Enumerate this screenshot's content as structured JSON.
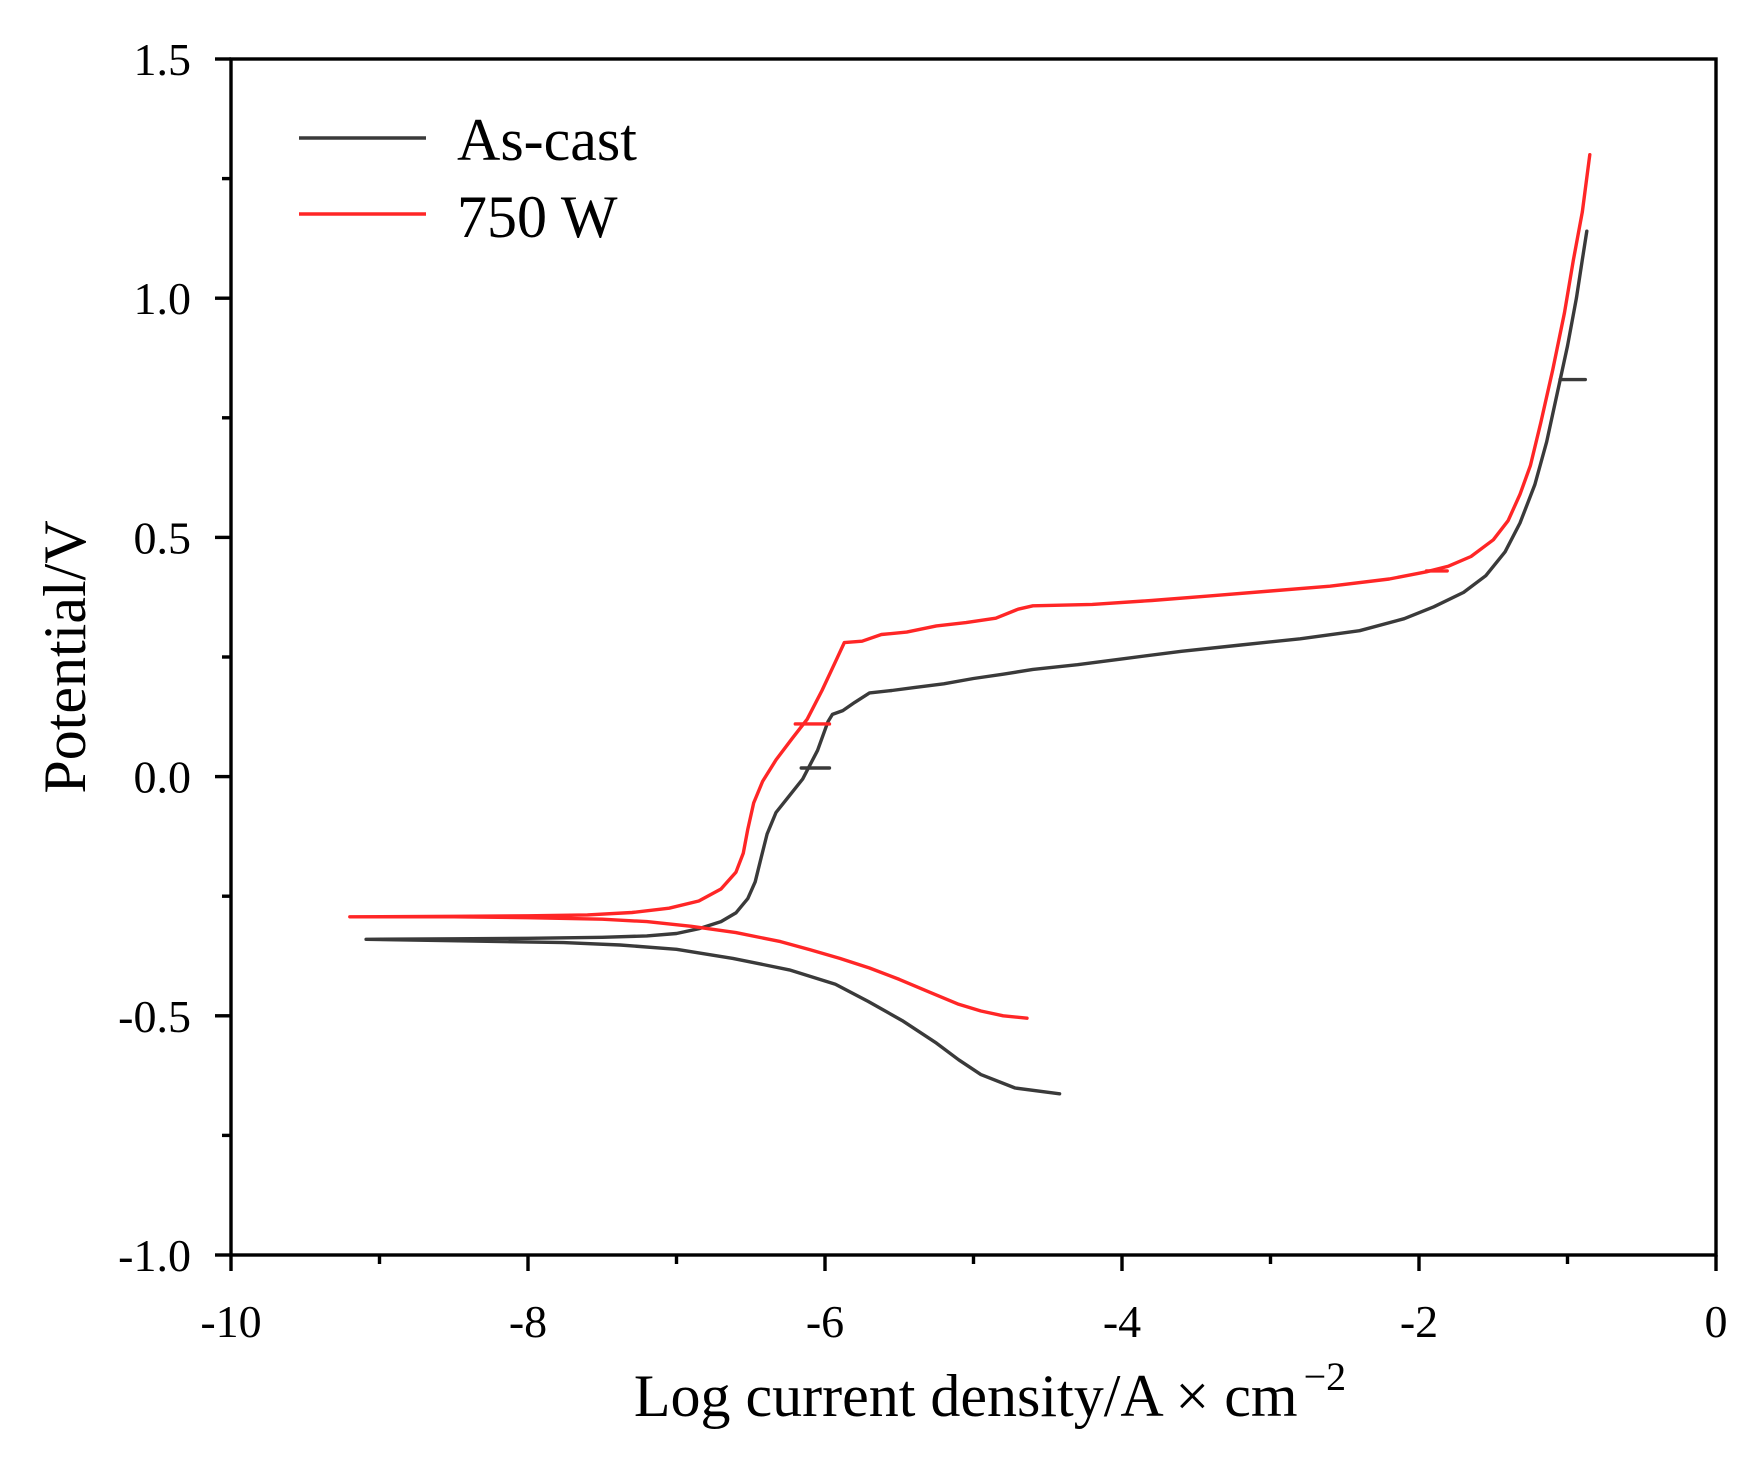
{
  "chart_data": {
    "type": "line",
    "title": "",
    "xlabel": "Log current density/A × cm",
    "xlabel_sup": "−2",
    "ylabel": "Potential/V",
    "xlim": [
      -10,
      0
    ],
    "ylim": [
      -1.0,
      1.5
    ],
    "xticks": [
      -10,
      -8,
      -6,
      -4,
      -2,
      0
    ],
    "xtick_labels": [
      "-10",
      "-8",
      "-6",
      "-4",
      "-2",
      "0"
    ],
    "xminor": [
      -9,
      -7,
      -5,
      -3,
      -1
    ],
    "yticks": [
      1.5,
      1.0,
      0.5,
      0.0,
      -0.5,
      -1.0
    ],
    "ytick_labels": [
      "1.5",
      "1.0",
      "0.5",
      "0.0",
      "-0.5",
      "-1.0"
    ],
    "yminor": [
      1.25,
      0.75,
      0.25,
      -0.25,
      -0.75
    ],
    "grid": false,
    "legend": {
      "position": "top-left"
    },
    "series": [
      {
        "name": "As-cast",
        "color": "#3a3a3a",
        "x": [
          -4.42,
          -4.72,
          -4.95,
          -5.1,
          -5.25,
          -5.48,
          -5.71,
          -5.93,
          -6.24,
          -6.62,
          -7.0,
          -7.38,
          -7.76,
          -8.52,
          -9.09,
          -8.5,
          -8.0,
          -7.5,
          -7.2,
          -7.0,
          -6.85,
          -6.7,
          -6.6,
          -6.52,
          -6.47,
          -6.43,
          -6.39,
          -6.33,
          -6.24,
          -6.15,
          -6.05,
          -5.98,
          -5.95,
          -5.88,
          -5.8,
          -5.7,
          -5.55,
          -5.4,
          -5.2,
          -5.0,
          -4.8,
          -4.6,
          -4.3,
          -4.0,
          -3.6,
          -3.2,
          -2.8,
          -2.4,
          -2.1,
          -1.9,
          -1.7,
          -1.55,
          -1.42,
          -1.32,
          -1.22,
          -1.14,
          -1.07,
          -1.0,
          -0.94,
          -0.9,
          -0.87
        ],
        "y": [
          -0.663,
          -0.651,
          -0.623,
          -0.592,
          -0.557,
          -0.51,
          -0.47,
          -0.434,
          -0.404,
          -0.38,
          -0.361,
          -0.352,
          -0.347,
          -0.343,
          -0.34,
          -0.339,
          -0.338,
          -0.336,
          -0.333,
          -0.328,
          -0.318,
          -0.303,
          -0.285,
          -0.255,
          -0.22,
          -0.17,
          -0.12,
          -0.075,
          -0.04,
          -0.005,
          0.055,
          0.115,
          0.13,
          0.138,
          0.155,
          0.175,
          0.18,
          0.186,
          0.194,
          0.205,
          0.214,
          0.224,
          0.234,
          0.246,
          0.262,
          0.275,
          0.288,
          0.305,
          0.33,
          0.355,
          0.385,
          0.42,
          0.47,
          0.53,
          0.61,
          0.7,
          0.8,
          0.9,
          1.0,
          1.08,
          1.14
        ],
        "stubs": [
          {
            "x": [
              -6.16,
              -5.97
            ],
            "y": 0.018
          },
          {
            "x": [
              -1.05,
              -0.88
            ],
            "y": 0.83
          }
        ]
      },
      {
        "name": "750 W",
        "color": "#ff2626",
        "x": [
          -4.64,
          -4.8,
          -4.95,
          -5.1,
          -5.3,
          -5.5,
          -5.7,
          -5.9,
          -6.1,
          -6.3,
          -6.6,
          -6.9,
          -7.2,
          -7.5,
          -8.0,
          -8.5,
          -9.2,
          -8.5,
          -8.0,
          -7.6,
          -7.3,
          -7.05,
          -6.85,
          -6.7,
          -6.6,
          -6.55,
          -6.52,
          -6.48,
          -6.42,
          -6.33,
          -6.22,
          -6.12,
          -6.02,
          -5.93,
          -5.87,
          -5.75,
          -5.62,
          -5.45,
          -5.25,
          -5.05,
          -4.85,
          -4.7,
          -4.6,
          -4.2,
          -3.8,
          -3.4,
          -3.0,
          -2.6,
          -2.2,
          -1.95,
          -1.8,
          -1.65,
          -1.5,
          -1.4,
          -1.32,
          -1.25,
          -1.18,
          -1.1,
          -1.02,
          -0.96,
          -0.9,
          -0.85
        ],
        "y": [
          -0.505,
          -0.5,
          -0.49,
          -0.476,
          -0.45,
          -0.424,
          -0.4,
          -0.38,
          -0.362,
          -0.345,
          -0.326,
          -0.313,
          -0.303,
          -0.298,
          -0.295,
          -0.293,
          -0.293,
          -0.292,
          -0.291,
          -0.289,
          -0.284,
          -0.275,
          -0.26,
          -0.235,
          -0.2,
          -0.16,
          -0.11,
          -0.055,
          -0.01,
          0.035,
          0.08,
          0.12,
          0.18,
          0.24,
          0.28,
          0.283,
          0.297,
          0.302,
          0.315,
          0.322,
          0.331,
          0.35,
          0.357,
          0.36,
          0.368,
          0.378,
          0.388,
          0.398,
          0.413,
          0.428,
          0.44,
          0.46,
          0.495,
          0.535,
          0.59,
          0.65,
          0.74,
          0.85,
          0.97,
          1.08,
          1.18,
          1.3
        ],
        "stubs": [
          {
            "x": [
              -6.2,
              -5.97
            ],
            "y": 0.11
          },
          {
            "x": [
              -1.95,
              -1.81
            ],
            "y": 0.43
          }
        ]
      }
    ]
  }
}
